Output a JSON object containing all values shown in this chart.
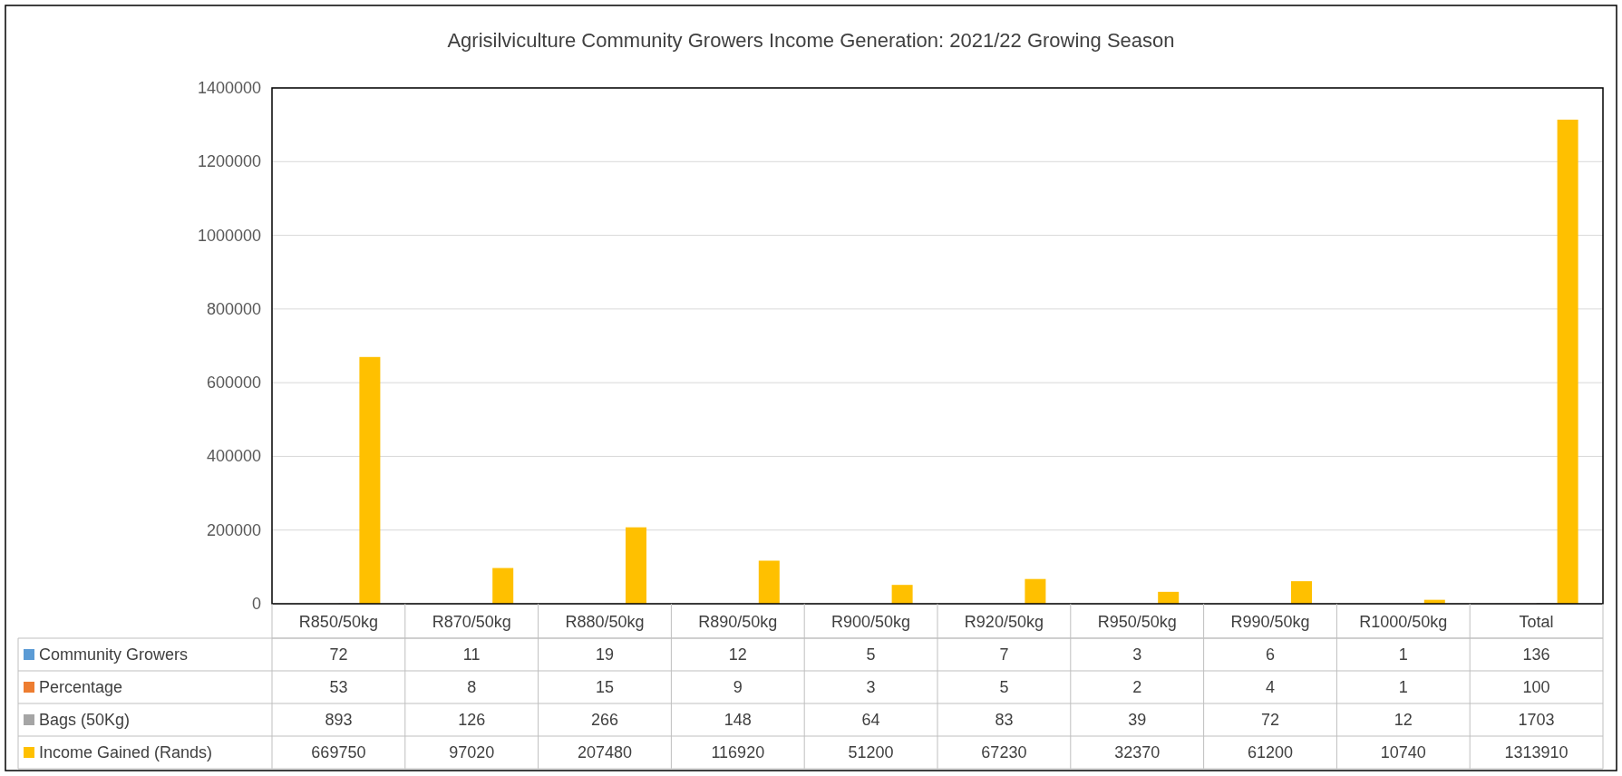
{
  "chart_data": {
    "type": "bar",
    "title": "Agrisilviculture Community Growers Income Generation: 2021/22 Growing Season",
    "categories": [
      "R850/50kg",
      "R870/50kg",
      "R880/50kg",
      "R890/50kg",
      "R900/50kg",
      "R920/50kg",
      "R950/50kg",
      "R990/50kg",
      "R1000/50kg",
      "Total"
    ],
    "series": [
      {
        "name": "Community Growers",
        "color": "#5b9bd5",
        "values": [
          72,
          11,
          19,
          12,
          5,
          7,
          3,
          6,
          1,
          136
        ]
      },
      {
        "name": "Percentage",
        "color": "#ed7d31",
        "values": [
          53,
          8,
          15,
          9,
          3,
          5,
          2,
          4,
          1,
          100
        ]
      },
      {
        "name": "Bags (50Kg)",
        "color": "#a5a5a5",
        "values": [
          893,
          126,
          266,
          148,
          64,
          83,
          39,
          72,
          12,
          1703
        ]
      },
      {
        "name": "Income Gained (Rands)",
        "color": "#ffc000",
        "values": [
          669750,
          97020,
          207480,
          116920,
          51200,
          67230,
          32370,
          61200,
          10740,
          1313910
        ]
      }
    ],
    "ylim": [
      0,
      1400000
    ],
    "yticks": [
      0,
      200000,
      400000,
      600000,
      800000,
      1000000,
      1200000,
      1400000
    ],
    "grid": "y",
    "data_labels": true,
    "legend": "bottom"
  }
}
